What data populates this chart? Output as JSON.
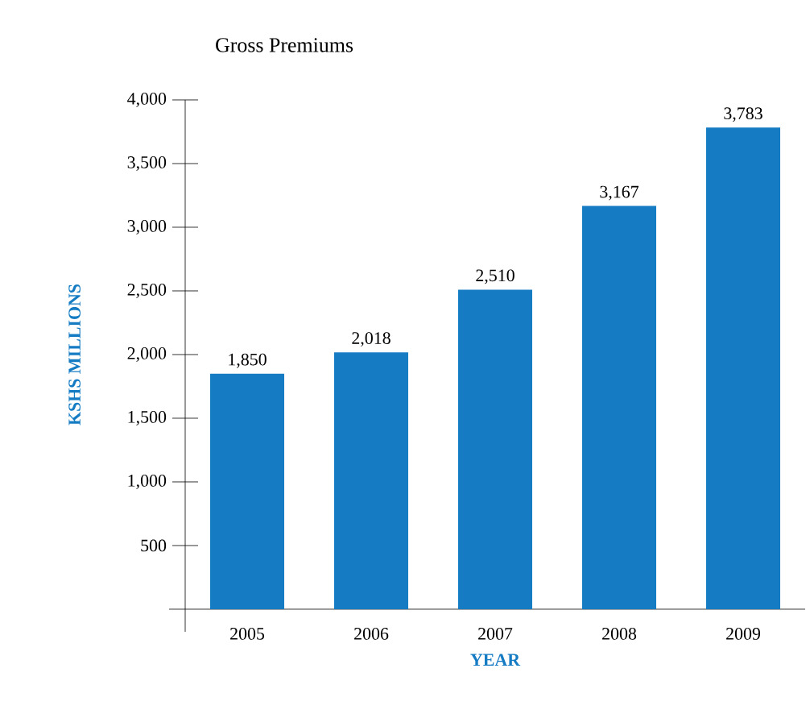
{
  "chart_data": {
    "type": "bar",
    "title": "Gross Premiums",
    "xlabel": "YEAR",
    "ylabel": "KSHS MILLIONS",
    "categories": [
      "2005",
      "2006",
      "2007",
      "2008",
      "2009"
    ],
    "values": [
      1850,
      2018,
      2510,
      3167,
      3783
    ],
    "value_labels": [
      "1,850",
      "2,018",
      "2,510",
      "3,167",
      "3,783"
    ],
    "color": "#157cc4",
    "ylim": [
      0,
      4000
    ],
    "yticks": [
      {
        "value": 500,
        "label": "500"
      },
      {
        "value": 1000,
        "label": "1,000"
      },
      {
        "value": 1500,
        "label": "1,500"
      },
      {
        "value": 2000,
        "label": "2,000"
      },
      {
        "value": 2500,
        "label": "2,500"
      },
      {
        "value": 3000,
        "label": "3,000"
      },
      {
        "value": 3500,
        "label": "3,500"
      },
      {
        "value": 4000,
        "label": "4,000"
      }
    ]
  }
}
